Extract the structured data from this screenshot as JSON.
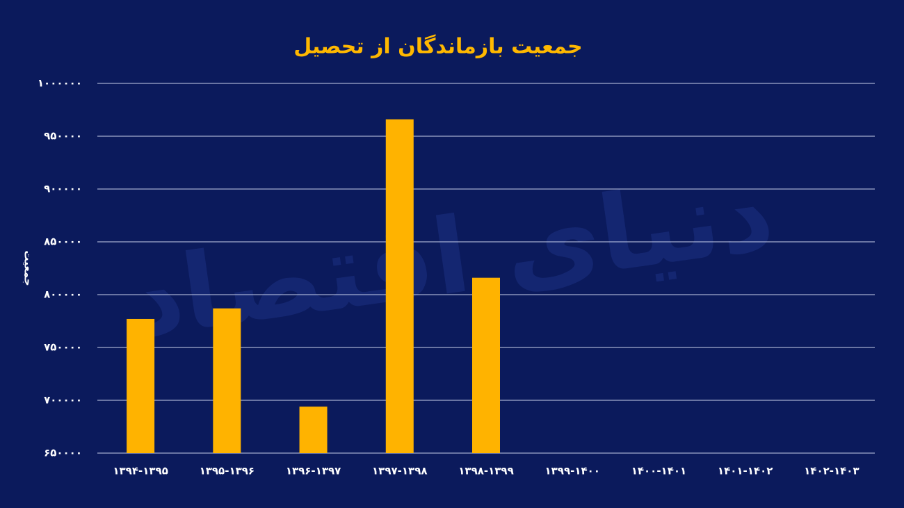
{
  "chart_data": {
    "type": "bar",
    "title": "جمعیت بازماندگان از تحصیل",
    "watermark": "دنیای اقتصاد",
    "y_label": "جمعیت",
    "categories": [
      "۱۳۹۴-۱۳۹۵",
      "۱۳۹۵-۱۳۹۶",
      "۱۳۹۶-۱۳۹۷",
      "۱۳۹۷-۱۳۹۸",
      "۱۳۹۸-۱۳۹۹",
      "۱۳۹۹-۱۴۰۰",
      "۱۴۰۰-۱۴۰۱",
      "۱۴۰۱-۱۴۰۲",
      "۱۴۰۲-۱۴۰۳"
    ],
    "values": [
      777000,
      787000,
      694000,
      966000,
      816000,
      null,
      null,
      null,
      null
    ],
    "color": "#ffb300",
    "ylim": [
      650000,
      1000000
    ],
    "yticks": [
      {
        "value": 650000,
        "label": "۶۵۰۰۰۰"
      },
      {
        "value": 700000,
        "label": "۷۰۰۰۰۰"
      },
      {
        "value": 750000,
        "label": "۷۵۰۰۰۰"
      },
      {
        "value": 800000,
        "label": "۸۰۰۰۰۰"
      },
      {
        "value": 850000,
        "label": "۸۵۰۰۰۰"
      },
      {
        "value": 900000,
        "label": "۹۰۰۰۰۰"
      },
      {
        "value": 950000,
        "label": "۹۵۰۰۰۰"
      },
      {
        "value": 1000000,
        "label": "۱۰۰۰۰۰۰"
      }
    ],
    "grid": true
  }
}
